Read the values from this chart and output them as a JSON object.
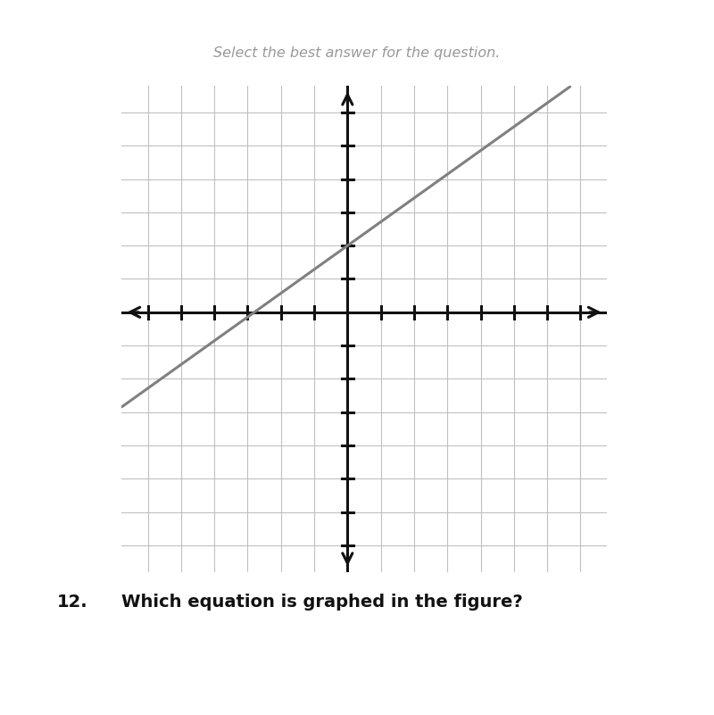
{
  "title": "Select the best answer for the question.",
  "question_num": "12.",
  "question_text": "Which equation is graphed in the figure?",
  "slope": 0.7142857142857143,
  "y_intercept": 2.0,
  "x_range": [
    -6,
    7
  ],
  "y_range": [
    -7,
    6
  ],
  "grid_color": "#c0c0c0",
  "axis_color": "#111111",
  "line_color": "#808080",
  "line_width": 2.2,
  "background_color": "#ffffff",
  "title_color": "#999999",
  "title_fontstyle": "italic",
  "title_fontsize": 11.5,
  "question_fontsize": 14,
  "fig_width": 8.0,
  "fig_height": 8.01
}
